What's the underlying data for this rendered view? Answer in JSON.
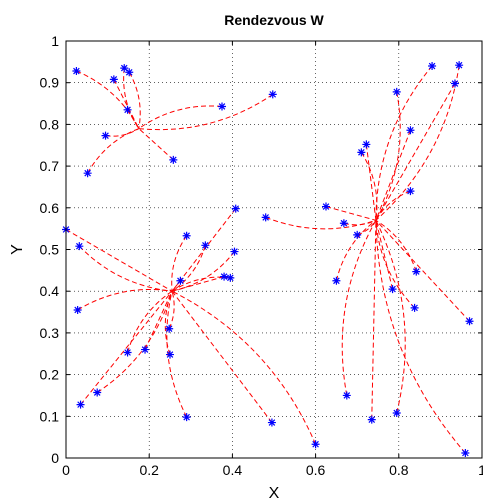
{
  "chart_data": {
    "type": "scatter",
    "title": "Rendezvous W",
    "xlabel": "X",
    "ylabel": "Y",
    "xlim": [
      0,
      1
    ],
    "ylim": [
      0,
      1
    ],
    "xticks": [
      "0",
      "0.2",
      "0.4",
      "0.6",
      "0.8",
      "1"
    ],
    "yticks": [
      "0",
      "0.1",
      "0.2",
      "0.3",
      "0.4",
      "0.5",
      "0.6",
      "0.7",
      "0.8",
      "0.9",
      "1"
    ],
    "grid": true,
    "colors": {
      "markers": "#0000ff",
      "paths": "#ff0000"
    },
    "points": [
      [
        0.025,
        0.928
      ],
      [
        0.115,
        0.908
      ],
      [
        0.14,
        0.935
      ],
      [
        0.152,
        0.925
      ],
      [
        0.148,
        0.835
      ],
      [
        0.095,
        0.773
      ],
      [
        0.052,
        0.683
      ],
      [
        0.258,
        0.715
      ],
      [
        0.375,
        0.843
      ],
      [
        0.497,
        0.872
      ],
      [
        0.0,
        0.548
      ],
      [
        0.032,
        0.508
      ],
      [
        0.028,
        0.355
      ],
      [
        0.035,
        0.128
      ],
      [
        0.075,
        0.157
      ],
      [
        0.148,
        0.253
      ],
      [
        0.19,
        0.26
      ],
      [
        0.248,
        0.31
      ],
      [
        0.25,
        0.248
      ],
      [
        0.275,
        0.425
      ],
      [
        0.29,
        0.533
      ],
      [
        0.335,
        0.51
      ],
      [
        0.38,
        0.435
      ],
      [
        0.395,
        0.432
      ],
      [
        0.405,
        0.495
      ],
      [
        0.408,
        0.598
      ],
      [
        0.48,
        0.577
      ],
      [
        0.29,
        0.098
      ],
      [
        0.495,
        0.085
      ],
      [
        0.6,
        0.033
      ],
      [
        0.675,
        0.15
      ],
      [
        0.735,
        0.092
      ],
      [
        0.795,
        0.108
      ],
      [
        0.96,
        0.012
      ],
      [
        0.625,
        0.603
      ],
      [
        0.668,
        0.563
      ],
      [
        0.71,
        0.733
      ],
      [
        0.722,
        0.752
      ],
      [
        0.7,
        0.535
      ],
      [
        0.65,
        0.425
      ],
      [
        0.785,
        0.405
      ],
      [
        0.842,
        0.447
      ],
      [
        0.838,
        0.36
      ],
      [
        0.97,
        0.328
      ],
      [
        0.828,
        0.64
      ],
      [
        0.795,
        0.878
      ],
      [
        0.828,
        0.786
      ],
      [
        0.88,
        0.94
      ],
      [
        0.945,
        0.942
      ],
      [
        0.935,
        0.898
      ]
    ],
    "rendezvous_points": [
      [
        0.175,
        0.79
      ],
      [
        0.255,
        0.4
      ],
      [
        0.745,
        0.57
      ]
    ]
  }
}
